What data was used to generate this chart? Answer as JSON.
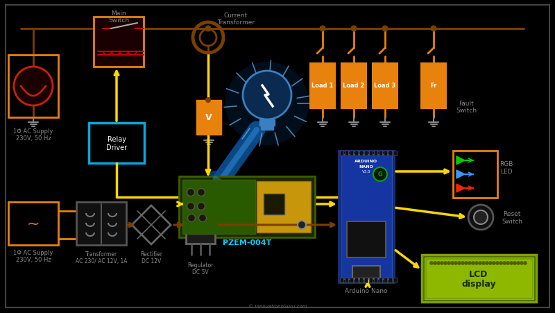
{
  "bg_color": "#000000",
  "border_color": "#555555",
  "orange": "#E8820C",
  "dark_orange": "#CC6600",
  "brown": "#7B3F00",
  "yellow": "#FFD700",
  "white": "#FFFFFF",
  "cyan": "#00CFFF",
  "gray": "#888888",
  "light_gray": "#AAAAAA",
  "dark_gray": "#333333",
  "green_led": "#00CC00",
  "blue_led": "#3399FF",
  "red_led": "#FF2200",
  "red": "#CC0000",
  "blue_pcb": "#1040A0",
  "arduino_blue": "#1535A0",
  "pzem_green": "#2A5A00",
  "pzem_yellow": "#C8960A",
  "lcd_green": "#7DB500",
  "lcd_text": "#1A2A00",
  "relay_border": "#00AADD",
  "ct_brown": "#8B5A00",
  "ac_red": "#CC2200",
  "ac_bg": "#1a0000",
  "main_switch_bg": "#1a0000",
  "text_gray": "#888888",
  "text_cyan": "#00CFFF",
  "text_white": "#FFFFFF",
  "labels": {
    "current_transformer": "Current\nTransformer",
    "main_switch": "Main\nSwitch",
    "relay_driver": "Relay\nDriver",
    "ac_supply_1": "1Φ AC Supply\n230V, 50 Hz",
    "ac_supply_2": "1Φ AC Supply\n230V, 50 Hz",
    "pzem": "PZEM-004T",
    "load1": "Load 1",
    "load2": "Load 2",
    "load3": "Load 3",
    "fr": "Fr",
    "fault_switch": "Fault\nSwitch",
    "rgb_led": "RGB\nLED",
    "reset_switch": "Reset\nSwitch",
    "lcd_line1": "LCD",
    "lcd_line2": "display",
    "transformer_label": "Transformer\nAC 230/ AC 12V, 1A",
    "rectifier_label": "Rectifier\nDC 12V",
    "regulator_label": "Regulator\nDC 5V",
    "arduino": "Arduino Nano",
    "copyright": "© InnovationsGuru.com",
    "voltage_v": "V"
  },
  "line_lw": 2.0,
  "arrow_lw": 2.2
}
